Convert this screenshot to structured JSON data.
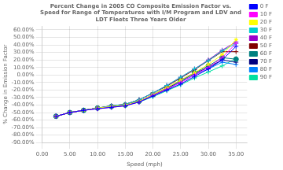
{
  "chart_data": {
    "type": "line",
    "title": "Percent Change in 2005 CO Composite Emission Factor vs.\nSpeed for Range of Temperatures with I/M Program and LDV and\nLDT Fleets Three Years Older",
    "xlabel": "Speed (mph)",
    "ylabel": "% Change in Emission Factor",
    "x": [
      2.5,
      5.0,
      7.5,
      10.0,
      12.5,
      15.0,
      17.5,
      20.0,
      22.5,
      25.0,
      27.5,
      30.0,
      32.5,
      35.0
    ],
    "xlim": [
      0,
      37
    ],
    "xticks": [
      {
        "value": 0,
        "label": "0.00"
      },
      {
        "value": 5,
        "label": "5.00"
      },
      {
        "value": 10,
        "label": "10.00"
      },
      {
        "value": 15,
        "label": "15.00"
      },
      {
        "value": 20,
        "label": "20.00"
      },
      {
        "value": 25,
        "label": "25.00"
      },
      {
        "value": 30,
        "label": "30.00"
      },
      {
        "value": 35,
        "label": "35.00"
      }
    ],
    "ylim": [
      -0.9,
      0.65
    ],
    "yticks": [
      {
        "value": 0.6,
        "label": "60.00%"
      },
      {
        "value": 0.5,
        "label": "50.00%"
      },
      {
        "value": 0.4,
        "label": "40.00%"
      },
      {
        "value": 0.3,
        "label": "30.00%"
      },
      {
        "value": 0.2,
        "label": "20.00%"
      },
      {
        "value": 0.1,
        "label": "10.00%"
      },
      {
        "value": 0.0,
        "label": "0.00%"
      },
      {
        "value": -0.1,
        "label": "-10.00%"
      },
      {
        "value": -0.2,
        "label": "-20.00%"
      },
      {
        "value": -0.3,
        "label": "-30.00%"
      },
      {
        "value": -0.4,
        "label": "-40.00%"
      },
      {
        "value": -0.5,
        "label": "-50.00%"
      },
      {
        "value": -0.6,
        "label": "-60.00%"
      },
      {
        "value": -0.7,
        "label": "-70.00%"
      },
      {
        "value": -0.8,
        "label": "-80.00%"
      },
      {
        "value": -0.9,
        "label": "-90.00%"
      }
    ],
    "grid": true,
    "legend": "right",
    "series": [
      {
        "name": "0 F",
        "color": "#0000ff",
        "marker": "plus",
        "values": [
          -0.55,
          -0.5,
          -0.47,
          -0.45,
          -0.43,
          -0.41,
          -0.36,
          -0.28,
          -0.2,
          -0.12,
          -0.02,
          0.08,
          0.2,
          0.38
        ]
      },
      {
        "name": "10 F",
        "color": "#ff00ff",
        "marker": "plus",
        "values": [
          -0.55,
          -0.5,
          -0.47,
          -0.45,
          -0.43,
          -0.41,
          -0.36,
          -0.27,
          -0.19,
          -0.1,
          0.0,
          0.1,
          0.23,
          0.42
        ]
      },
      {
        "name": "20 F",
        "color": "#ffff00",
        "marker": "star",
        "values": [
          -0.55,
          -0.5,
          -0.47,
          -0.44,
          -0.42,
          -0.4,
          -0.35,
          -0.26,
          -0.17,
          -0.07,
          0.03,
          0.14,
          0.27,
          0.47
        ]
      },
      {
        "name": "30 F",
        "color": "#00cccc",
        "marker": "plus",
        "values": [
          -0.55,
          -0.5,
          -0.47,
          -0.44,
          -0.41,
          -0.39,
          -0.33,
          -0.24,
          -0.14,
          -0.03,
          0.08,
          0.19,
          0.32,
          0.42
        ]
      },
      {
        "name": "40 F",
        "color": "#9900cc",
        "marker": "plus",
        "values": [
          -0.55,
          -0.5,
          -0.47,
          -0.44,
          -0.41,
          -0.39,
          -0.33,
          -0.24,
          -0.14,
          -0.03,
          0.08,
          0.2,
          0.33,
          0.44
        ]
      },
      {
        "name": "50 F",
        "color": "#800000",
        "marker": "plus",
        "values": [
          -0.55,
          -0.5,
          -0.47,
          -0.44,
          -0.41,
          -0.39,
          -0.33,
          -0.24,
          -0.15,
          -0.04,
          0.07,
          0.19,
          0.31,
          0.31
        ]
      },
      {
        "name": "60 F",
        "color": "#008080",
        "marker": "point",
        "values": [
          -0.55,
          -0.5,
          -0.47,
          -0.44,
          -0.42,
          -0.4,
          -0.35,
          -0.26,
          -0.17,
          -0.07,
          0.03,
          0.12,
          0.23,
          0.21
        ]
      },
      {
        "name": "70 F",
        "color": "#000080",
        "marker": "plus",
        "values": [
          -0.55,
          -0.5,
          -0.47,
          -0.44,
          -0.42,
          -0.4,
          -0.35,
          -0.27,
          -0.18,
          -0.08,
          0.02,
          0.1,
          0.2,
          0.17
        ]
      },
      {
        "name": "80 F",
        "color": "#0080ff",
        "marker": "plus",
        "values": [
          -0.55,
          -0.5,
          -0.47,
          -0.44,
          -0.42,
          -0.4,
          -0.35,
          -0.27,
          -0.19,
          -0.09,
          0.0,
          0.08,
          0.17,
          0.14
        ]
      },
      {
        "name": "90 F",
        "color": "#00e0a0",
        "marker": "plus",
        "values": [
          -0.55,
          -0.5,
          -0.47,
          -0.44,
          -0.42,
          -0.4,
          -0.36,
          -0.29,
          -0.21,
          -0.13,
          -0.04,
          0.04,
          0.12,
          0.22
        ]
      }
    ]
  }
}
